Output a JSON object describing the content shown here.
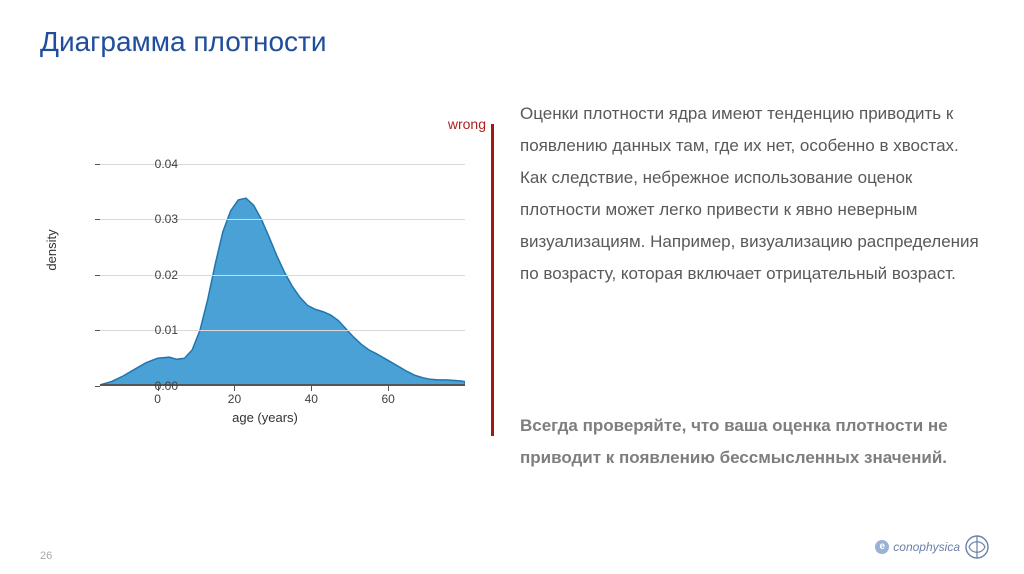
{
  "title": "Диаграмма плотности",
  "wrong_label": "wrong",
  "body": "Оценки плотности ядра имеют тенденцию приводить к появлению данных там, где их нет, особенно в хвостах. Как следствие, небрежное использование оценок плотности может легко привести к явно неверным визуализациям. Например, визуализацию распределения по возрасту, которая включает отрицательный возраст.",
  "emphasis": "Всегда проверяйте, что ваша оценка плотности не приводит к появлению бессмысленных значений.",
  "chart": {
    "type": "density",
    "xlabel": "age (years)",
    "ylabel": "density",
    "xlim": [
      -15,
      80
    ],
    "ylim": [
      0,
      0.045
    ],
    "xticks": [
      0,
      20,
      40,
      60
    ],
    "yticks": [
      0.0,
      0.01,
      0.02,
      0.03,
      0.04
    ],
    "ytick_labels": [
      "0.00",
      "0.01",
      "0.02",
      "0.03",
      "0.04"
    ],
    "fill_color": "#4aa1d6",
    "stroke_color": "#2176ae",
    "grid_color": "#d9d9d9",
    "baseline_color": "#555555",
    "background_color": "#ffffff",
    "wrong_color": "#b02121",
    "accent_bar_color": "#a01818",
    "points": [
      [
        -15,
        0.0002
      ],
      [
        -12,
        0.0008
      ],
      [
        -9,
        0.0018
      ],
      [
        -6,
        0.003
      ],
      [
        -3,
        0.0042
      ],
      [
        0,
        0.005
      ],
      [
        3,
        0.0052
      ],
      [
        5,
        0.0048
      ],
      [
        7,
        0.005
      ],
      [
        9,
        0.0065
      ],
      [
        11,
        0.01
      ],
      [
        13,
        0.0155
      ],
      [
        15,
        0.022
      ],
      [
        17,
        0.0278
      ],
      [
        19,
        0.0315
      ],
      [
        21,
        0.0335
      ],
      [
        23,
        0.0338
      ],
      [
        25,
        0.0325
      ],
      [
        27,
        0.03
      ],
      [
        29,
        0.0268
      ],
      [
        31,
        0.0235
      ],
      [
        33,
        0.0205
      ],
      [
        35,
        0.018
      ],
      [
        37,
        0.016
      ],
      [
        39,
        0.0145
      ],
      [
        41,
        0.0138
      ],
      [
        43,
        0.0134
      ],
      [
        45,
        0.0128
      ],
      [
        47,
        0.0118
      ],
      [
        49,
        0.0103
      ],
      [
        51,
        0.0088
      ],
      [
        53,
        0.0075
      ],
      [
        55,
        0.0065
      ],
      [
        57,
        0.0058
      ],
      [
        59,
        0.005
      ],
      [
        61,
        0.0042
      ],
      [
        63,
        0.0034
      ],
      [
        65,
        0.0026
      ],
      [
        67,
        0.0019
      ],
      [
        69,
        0.0015
      ],
      [
        71,
        0.0012
      ],
      [
        73,
        0.0011
      ],
      [
        75,
        0.0011
      ],
      [
        77,
        0.001
      ],
      [
        79,
        0.0009
      ],
      [
        80,
        0.0008
      ]
    ]
  },
  "page_number": "26",
  "logo_text": "conophysica"
}
